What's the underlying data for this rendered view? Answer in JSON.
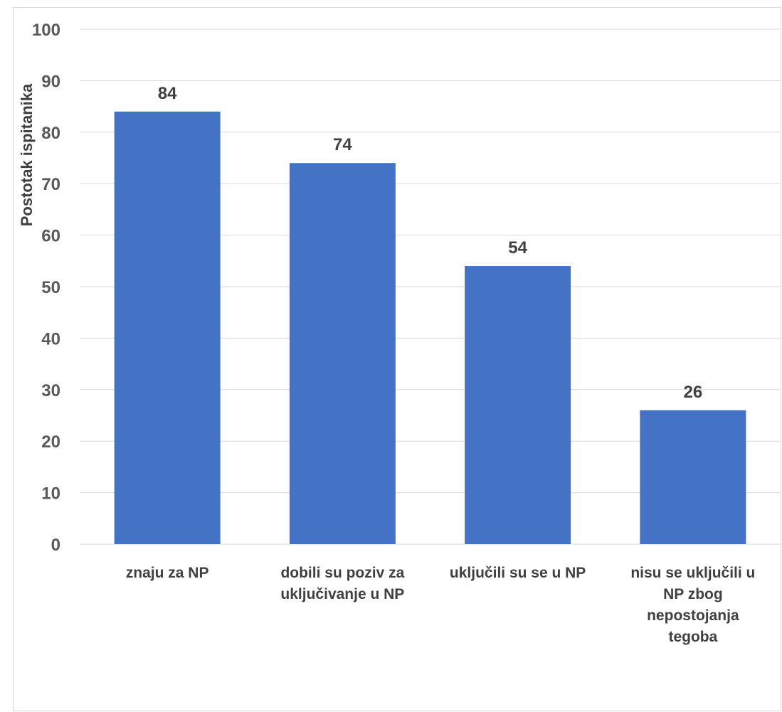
{
  "chart_data": {
    "type": "bar",
    "title": "",
    "xlabel": "",
    "ylabel": "Postotak ispitanika",
    "ylim": [
      0,
      100
    ],
    "yticks": [
      0,
      10,
      20,
      30,
      40,
      50,
      60,
      70,
      80,
      90,
      100
    ],
    "grid": true,
    "legend": "none",
    "bar_color": "#4472C4",
    "categories": [
      [
        "znaju za NP"
      ],
      [
        "dobili su poziv za",
        "uključivanje u NP"
      ],
      [
        "uključili su se u NP"
      ],
      [
        "nisu se uključili u",
        "NP zbog",
        "nepostojanja",
        "tegoba"
      ]
    ],
    "values": [
      84,
      74,
      54,
      26
    ]
  }
}
